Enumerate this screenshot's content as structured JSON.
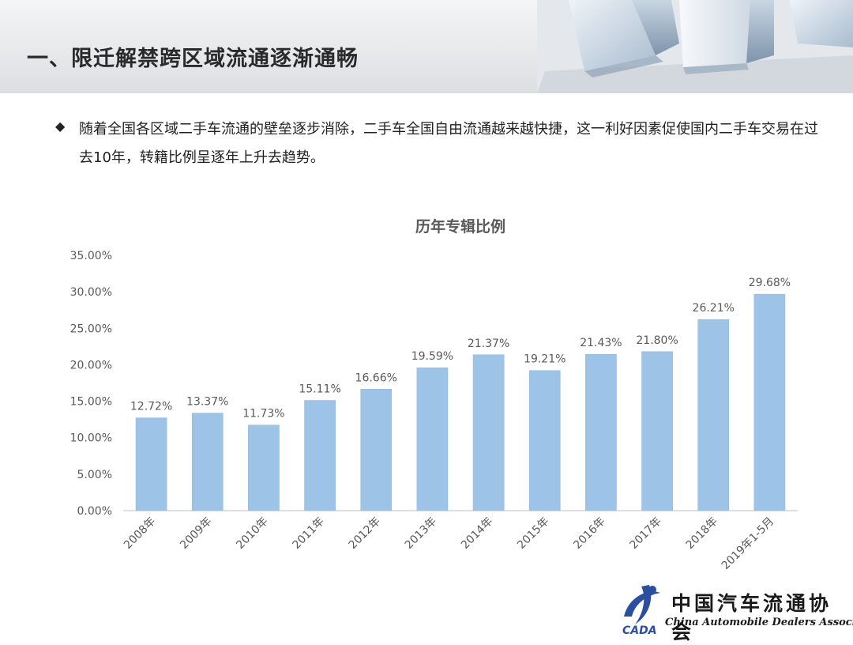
{
  "header": {
    "title": "一、限迁解禁跨区域流通逐渐通畅"
  },
  "bullet": {
    "text": "随着全国各区域二手车流通的壁垒逐步消除，二手车全国自由流通越来越快捷，这一利好因素促使国内二手车交易在过去10年，转籍比例呈逐年上升去趋势。"
  },
  "logo": {
    "cn": "中国汽车流通协会",
    "en": "China Automobile Dealers Association",
    "mark": "CADA"
  },
  "colors": {
    "bar": "#9dc3e6",
    "bar_edge": "#8fb7dd",
    "axis": "#bfbfbf",
    "text": "#595959",
    "title": "#595959"
  },
  "chart_data": {
    "type": "bar",
    "title": "历年专辑比例",
    "categories": [
      "2008年",
      "2009年",
      "2010年",
      "2011年",
      "2012年",
      "2013年",
      "2014年",
      "2015年",
      "2016年",
      "2017年",
      "2018年",
      "2019年1-5月"
    ],
    "values": [
      12.72,
      13.37,
      11.73,
      15.11,
      16.66,
      19.59,
      21.37,
      19.21,
      21.43,
      21.8,
      26.21,
      29.68
    ],
    "value_labels": [
      "12.72%",
      "13.37%",
      "11.73%",
      "15.11%",
      "16.66%",
      "19.59%",
      "21.37%",
      "19.21%",
      "21.43%",
      "21.80%",
      "26.21%",
      "29.68%"
    ],
    "ylim": [
      0,
      35
    ],
    "yticks": [
      "0.00%",
      "5.00%",
      "10.00%",
      "15.00%",
      "20.00%",
      "25.00%",
      "30.00%",
      "35.00%"
    ],
    "grid": false,
    "legend": "none"
  }
}
